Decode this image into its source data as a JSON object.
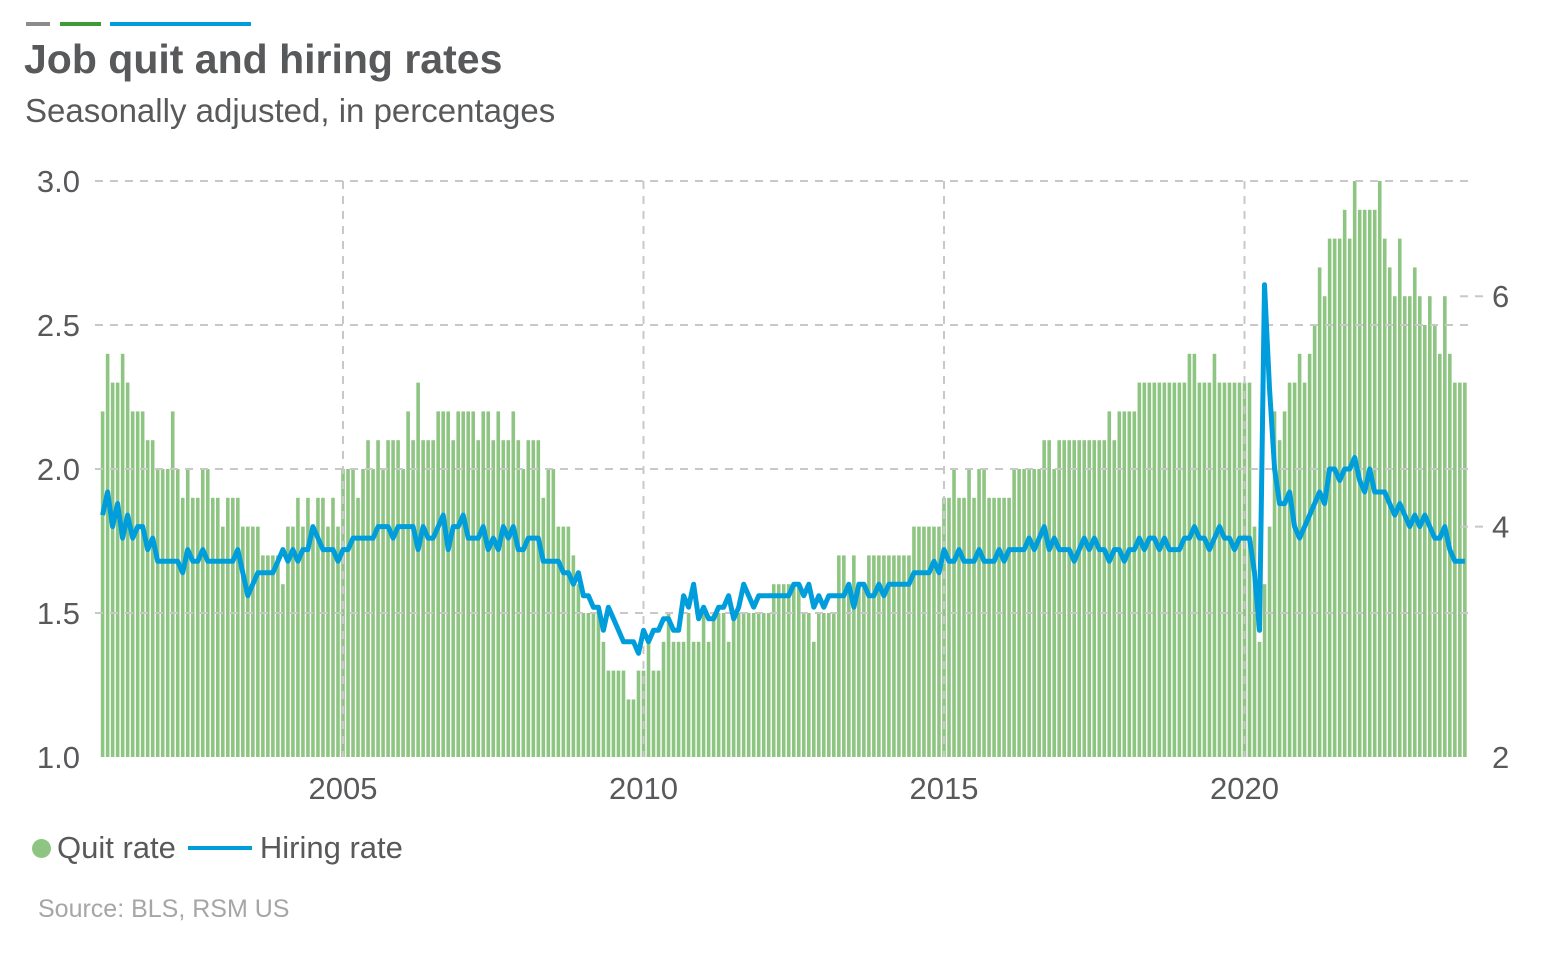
{
  "header": {
    "title": "Job quit and hiring rates",
    "subtitle": "Seasonally adjusted, in percentages",
    "bar_colors": [
      "#8c8c8c",
      "#3f9b35",
      "#009ddc"
    ]
  },
  "legend": {
    "quit_label": "Quit rate",
    "hiring_label": "Hiring rate"
  },
  "source": "Source: BLS, RSM US",
  "chart_data": {
    "type": "bar+line",
    "title": "Job quit and hiring rates",
    "subtitle": "Seasonally adjusted, in percentages",
    "frequency": "monthly",
    "start": "2001-01",
    "end": "2023-09",
    "x_ticks": [
      "2005",
      "2010",
      "2015",
      "2020"
    ],
    "left_axis": {
      "range": [
        1.0,
        3.0
      ],
      "ticks": [
        "1.0",
        "1.5",
        "2.0",
        "2.5",
        "3.0"
      ]
    },
    "right_axis": {
      "range": [
        2,
        7
      ],
      "ticks": [
        "2",
        "4",
        "6"
      ]
    },
    "grid": true,
    "legend_position": "bottom-left",
    "series": [
      {
        "name": "Quit rate",
        "type": "bar",
        "axis": "left",
        "color": "#8fc582",
        "values": [
          2.2,
          2.4,
          2.3,
          2.3,
          2.4,
          2.3,
          2.2,
          2.2,
          2.2,
          2.1,
          2.1,
          2.0,
          2.0,
          2.0,
          2.2,
          2.0,
          1.9,
          2.0,
          1.9,
          1.9,
          2.0,
          2.0,
          1.9,
          1.9,
          1.8,
          1.9,
          1.9,
          1.9,
          1.8,
          1.8,
          1.8,
          1.8,
          1.7,
          1.7,
          1.7,
          1.7,
          1.6,
          1.8,
          1.8,
          1.9,
          1.8,
          1.9,
          1.8,
          1.9,
          1.9,
          1.8,
          1.9,
          1.8,
          2.0,
          2.0,
          2.0,
          1.9,
          2.0,
          2.1,
          2.0,
          2.1,
          2.0,
          2.1,
          2.1,
          2.1,
          2.0,
          2.2,
          2.1,
          2.3,
          2.1,
          2.1,
          2.1,
          2.2,
          2.2,
          2.2,
          2.1,
          2.2,
          2.2,
          2.2,
          2.2,
          2.1,
          2.2,
          2.2,
          2.1,
          2.2,
          2.1,
          2.1,
          2.2,
          2.1,
          2.0,
          2.1,
          2.1,
          2.1,
          1.9,
          2.0,
          2.0,
          1.8,
          1.8,
          1.8,
          1.7,
          1.6,
          1.5,
          1.5,
          1.5,
          1.5,
          1.4,
          1.3,
          1.3,
          1.3,
          1.3,
          1.2,
          1.2,
          1.3,
          1.3,
          1.4,
          1.3,
          1.3,
          1.4,
          1.5,
          1.4,
          1.4,
          1.4,
          1.5,
          1.4,
          1.4,
          1.5,
          1.4,
          1.5,
          1.5,
          1.5,
          1.4,
          1.5,
          1.5,
          1.5,
          1.5,
          1.5,
          1.5,
          1.5,
          1.5,
          1.6,
          1.6,
          1.6,
          1.6,
          1.6,
          1.6,
          1.5,
          1.5,
          1.4,
          1.5,
          1.5,
          1.5,
          1.5,
          1.7,
          1.7,
          1.6,
          1.7,
          1.6,
          1.6,
          1.7,
          1.7,
          1.7,
          1.7,
          1.7,
          1.7,
          1.7,
          1.7,
          1.7,
          1.8,
          1.8,
          1.8,
          1.8,
          1.8,
          1.8,
          1.9,
          1.9,
          2.0,
          1.9,
          1.9,
          2.0,
          1.9,
          2.0,
          2.0,
          1.9,
          1.9,
          1.9,
          1.9,
          1.9,
          2.0,
          2.0,
          2.0,
          2.0,
          2.0,
          2.0,
          2.1,
          2.1,
          2.0,
          2.1,
          2.1,
          2.1,
          2.1,
          2.1,
          2.1,
          2.1,
          2.1,
          2.1,
          2.1,
          2.2,
          2.1,
          2.2,
          2.2,
          2.2,
          2.2,
          2.3,
          2.3,
          2.3,
          2.3,
          2.3,
          2.3,
          2.3,
          2.3,
          2.3,
          2.3,
          2.4,
          2.4,
          2.3,
          2.3,
          2.3,
          2.4,
          2.3,
          2.3,
          2.3,
          2.3,
          2.3,
          2.3,
          2.3,
          1.8,
          1.4,
          1.6,
          1.8,
          2.2,
          2.1,
          2.2,
          2.3,
          2.3,
          2.4,
          2.3,
          2.4,
          2.5,
          2.7,
          2.6,
          2.8,
          2.8,
          2.8,
          2.9,
          2.8,
          3.0,
          2.9,
          2.9,
          2.9,
          2.9,
          3.0,
          2.8,
          2.7,
          2.6,
          2.8,
          2.6,
          2.6,
          2.7,
          2.6,
          2.5,
          2.6,
          2.5,
          2.4,
          2.6,
          2.4,
          2.3,
          2.3,
          2.3
        ]
      },
      {
        "name": "Hiring rate",
        "type": "line",
        "axis": "right",
        "color": "#009ddc",
        "values": [
          4.1,
          4.3,
          4.0,
          4.2,
          3.9,
          4.1,
          3.9,
          4.0,
          4.0,
          3.8,
          3.9,
          3.7,
          3.7,
          3.7,
          3.7,
          3.7,
          3.6,
          3.8,
          3.7,
          3.7,
          3.8,
          3.7,
          3.7,
          3.7,
          3.7,
          3.7,
          3.7,
          3.8,
          3.6,
          3.4,
          3.5,
          3.6,
          3.6,
          3.6,
          3.6,
          3.7,
          3.8,
          3.7,
          3.8,
          3.7,
          3.8,
          3.8,
          4.0,
          3.9,
          3.8,
          3.8,
          3.8,
          3.7,
          3.8,
          3.8,
          3.9,
          3.9,
          3.9,
          3.9,
          3.9,
          4.0,
          4.0,
          4.0,
          3.9,
          4.0,
          4.0,
          4.0,
          4.0,
          3.8,
          4.0,
          3.9,
          3.9,
          4.0,
          4.1,
          3.8,
          4.0,
          4.0,
          4.1,
          3.9,
          3.9,
          3.9,
          4.0,
          3.8,
          3.9,
          3.8,
          4.0,
          3.9,
          4.0,
          3.8,
          3.8,
          3.9,
          3.9,
          3.9,
          3.7,
          3.7,
          3.7,
          3.7,
          3.6,
          3.6,
          3.5,
          3.6,
          3.4,
          3.4,
          3.3,
          3.3,
          3.1,
          3.3,
          3.2,
          3.1,
          3.0,
          3.0,
          3.0,
          2.9,
          3.1,
          3.0,
          3.1,
          3.1,
          3.2,
          3.2,
          3.1,
          3.1,
          3.4,
          3.3,
          3.5,
          3.2,
          3.3,
          3.2,
          3.2,
          3.3,
          3.3,
          3.4,
          3.2,
          3.3,
          3.5,
          3.4,
          3.3,
          3.4,
          3.4,
          3.4,
          3.4,
          3.4,
          3.4,
          3.4,
          3.5,
          3.5,
          3.4,
          3.5,
          3.3,
          3.4,
          3.3,
          3.4,
          3.4,
          3.4,
          3.4,
          3.5,
          3.3,
          3.5,
          3.5,
          3.4,
          3.4,
          3.5,
          3.4,
          3.5,
          3.5,
          3.5,
          3.5,
          3.5,
          3.6,
          3.6,
          3.6,
          3.6,
          3.7,
          3.6,
          3.8,
          3.7,
          3.7,
          3.8,
          3.7,
          3.7,
          3.7,
          3.8,
          3.7,
          3.7,
          3.7,
          3.8,
          3.7,
          3.8,
          3.8,
          3.8,
          3.8,
          3.9,
          3.8,
          3.9,
          4.0,
          3.8,
          3.9,
          3.8,
          3.8,
          3.8,
          3.7,
          3.8,
          3.9,
          3.8,
          3.9,
          3.8,
          3.8,
          3.7,
          3.8,
          3.8,
          3.7,
          3.8,
          3.8,
          3.9,
          3.8,
          3.9,
          3.9,
          3.8,
          3.9,
          3.8,
          3.8,
          3.8,
          3.9,
          3.9,
          4.0,
          3.9,
          3.9,
          3.8,
          3.9,
          4.0,
          3.9,
          3.9,
          3.8,
          3.9,
          3.9,
          3.9,
          3.6,
          3.1,
          6.1,
          5.2,
          4.5,
          4.2,
          4.2,
          4.3,
          4.0,
          3.9,
          4.0,
          4.1,
          4.2,
          4.3,
          4.2,
          4.5,
          4.5,
          4.4,
          4.5,
          4.5,
          4.6,
          4.4,
          4.3,
          4.5,
          4.3,
          4.3,
          4.3,
          4.2,
          4.1,
          4.2,
          4.1,
          4.0,
          4.1,
          4.0,
          4.1,
          4.0,
          3.9,
          3.9,
          4.0,
          3.8,
          3.7,
          3.7,
          3.7
        ]
      }
    ]
  }
}
